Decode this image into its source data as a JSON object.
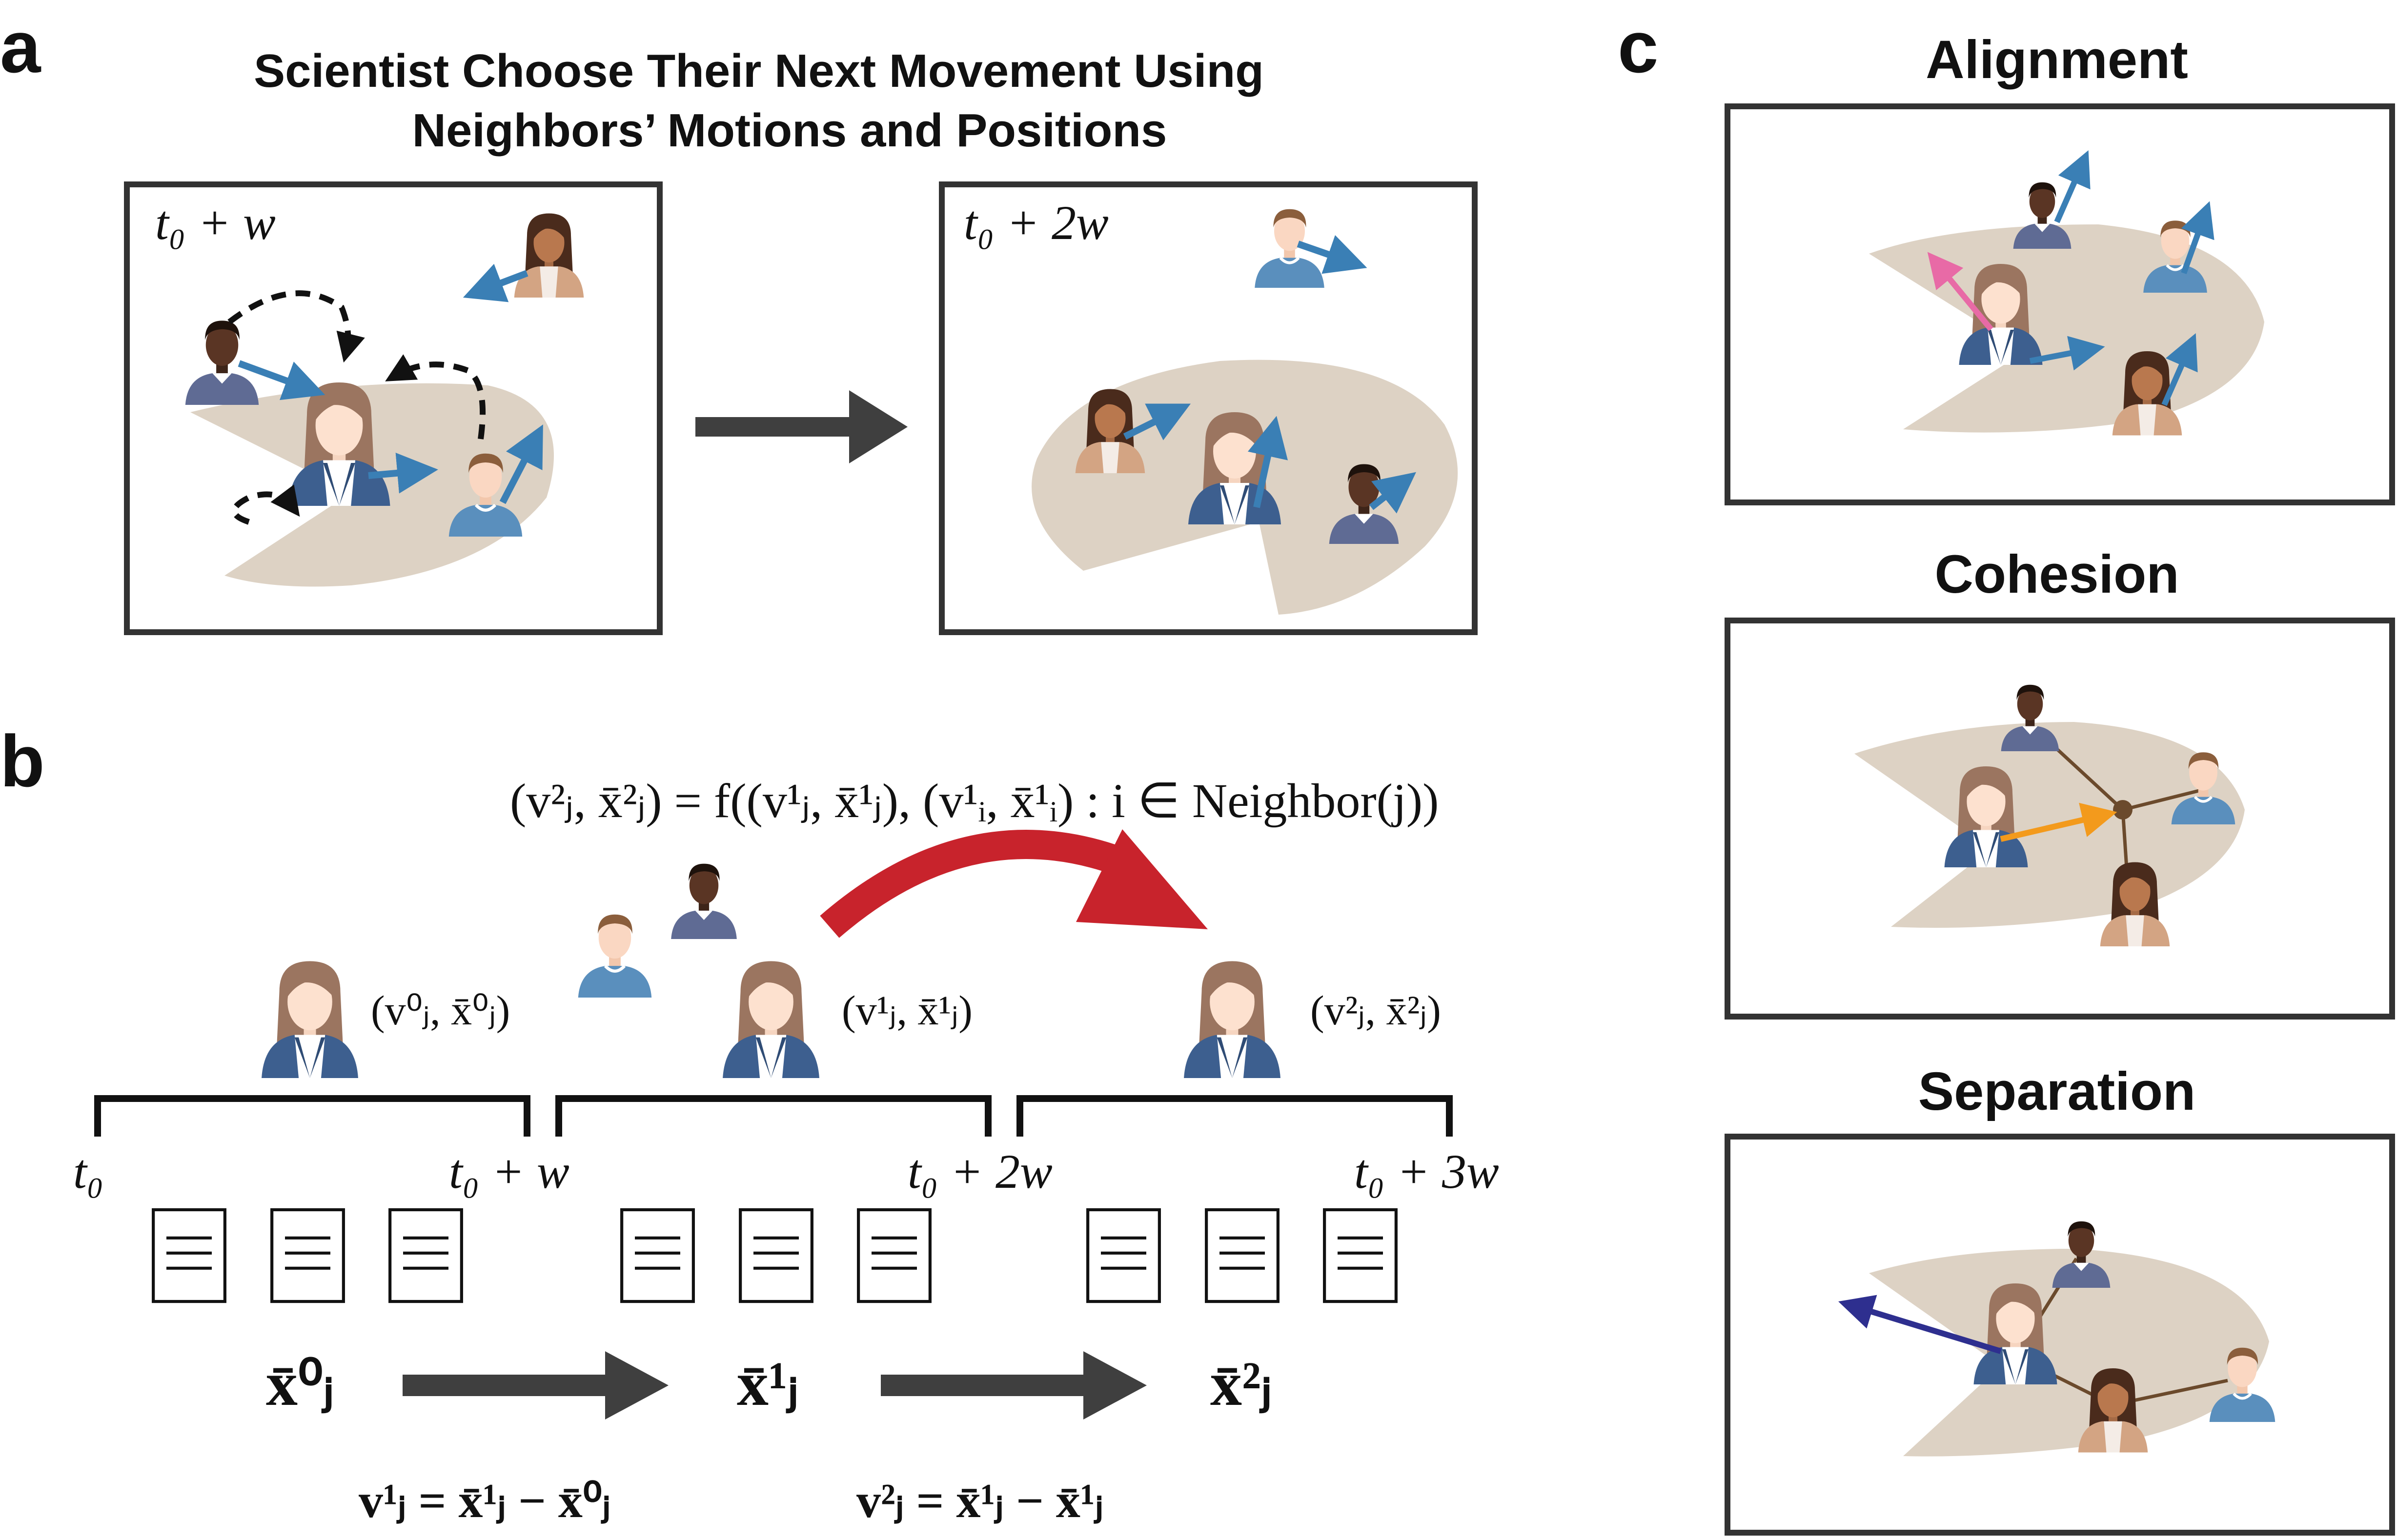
{
  "panel_a": {
    "label": "a",
    "title_line1": "Scientist Choose Their Next Movement Using",
    "title_line2": "Neighbors’ Motions and Positions",
    "box1_time": "t₀ + w",
    "box2_time": "t₀ + 2w"
  },
  "panel_b": {
    "label": "b",
    "equation": "(v²ⱼ, x̄²ⱼ) = f((v¹ⱼ, x̄¹ⱼ), (v¹ᵢ, x̄¹ᵢ) : i ∈ Neighbor(j))",
    "state0": "(v⁰ⱼ, x̄⁰ⱼ)",
    "state1": "(v¹ⱼ, x̄¹ⱼ)",
    "state2": "(v²ⱼ, x̄²ⱼ)",
    "t0": "t₀",
    "t1": "t₀ + w",
    "t2": "t₀ + 2w",
    "t3": "t₀ + 3w",
    "x0": "x̄⁰ⱼ",
    "x1": "x̄¹ⱼ",
    "x2": "x̄²ⱼ",
    "v1_eq": "v¹ⱼ = x̄¹ⱼ − x̄⁰ⱼ",
    "v2_eq": "v²ⱼ = x̄¹ⱼ − x̄¹ⱼ"
  },
  "panel_c": {
    "label": "c",
    "alignment": "Alignment",
    "cohesion": "Cohesion",
    "separation": "Separation"
  },
  "colors": {
    "blue_arrow": "#3a7fb5",
    "pink_arrow": "#e86aa6",
    "orange_arrow": "#f39a1c",
    "navy_arrow": "#2e2f8f",
    "red_arrow": "#c8232c",
    "gray_arrow": "#3f3f3f",
    "cone": "#ddd2c4",
    "link": "#6b4a2c"
  }
}
